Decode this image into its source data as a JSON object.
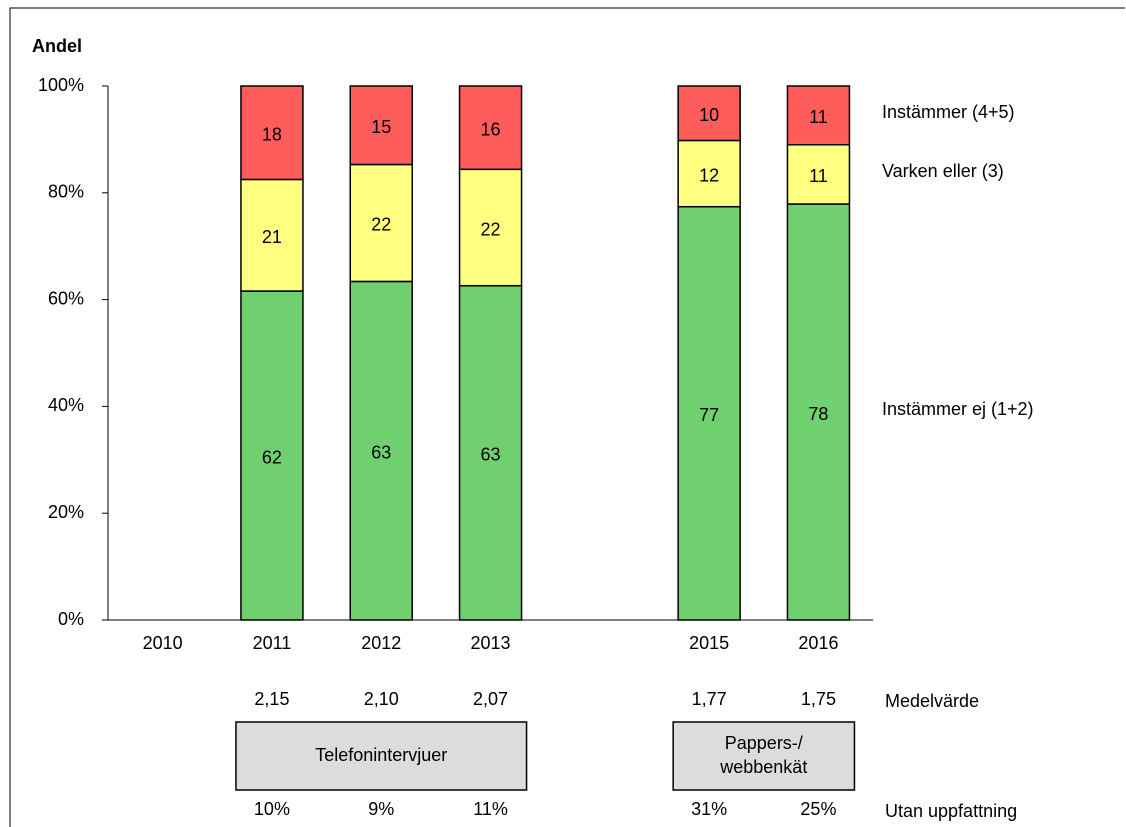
{
  "chart_data": {
    "type": "bar",
    "stacked": true,
    "y_axis_title": "Andel",
    "categories": [
      "2010",
      "2011",
      "2012",
      "2013",
      null,
      "2015",
      "2016"
    ],
    "series": [
      {
        "name": "Instämmer ej (1+2)",
        "color": "#70d070",
        "values": [
          null,
          61.6,
          63.4,
          62.6,
          null,
          77.4,
          77.9
        ],
        "value_labels": [
          null,
          "62",
          "63",
          "63",
          null,
          "77",
          "78"
        ]
      },
      {
        "name": "Varken eller (3)",
        "color": "#ffff80",
        "values": [
          null,
          20.9,
          21.9,
          21.8,
          null,
          12.4,
          11.1
        ],
        "value_labels": [
          null,
          "21",
          "22",
          "22",
          null,
          "12",
          "11"
        ]
      },
      {
        "name": "Instämmer (4+5)",
        "color": "#ff5c5c",
        "values": [
          null,
          17.5,
          14.7,
          15.6,
          null,
          10.2,
          11.0
        ],
        "value_labels": [
          null,
          "18",
          "15",
          "16",
          null,
          "10",
          "11"
        ]
      }
    ],
    "ylim": [
      0,
      100
    ],
    "yticks": [
      {
        "value": 0,
        "label": "0%"
      },
      {
        "value": 20,
        "label": "20%"
      },
      {
        "value": 40,
        "label": "40%"
      },
      {
        "value": 60,
        "label": "60%"
      },
      {
        "value": 80,
        "label": "80%"
      },
      {
        "value": 100,
        "label": "100%"
      }
    ],
    "grid": false,
    "rows": [
      {
        "label": "Medelvärde",
        "values": [
          null,
          "2,15",
          "2,10",
          "2,07",
          null,
          "1,77",
          "1,75"
        ]
      },
      {
        "label": "Utan uppfattning",
        "values": [
          null,
          "10%",
          "9%",
          "11%",
          null,
          "31%",
          "25%"
        ]
      }
    ],
    "groups": [
      {
        "lines": [
          "Telefonintervjuer"
        ],
        "from": 1,
        "to": 3
      },
      {
        "lines": [
          "Pappers-/",
          "webbenkät"
        ],
        "from": 5,
        "to": 6
      }
    ]
  }
}
